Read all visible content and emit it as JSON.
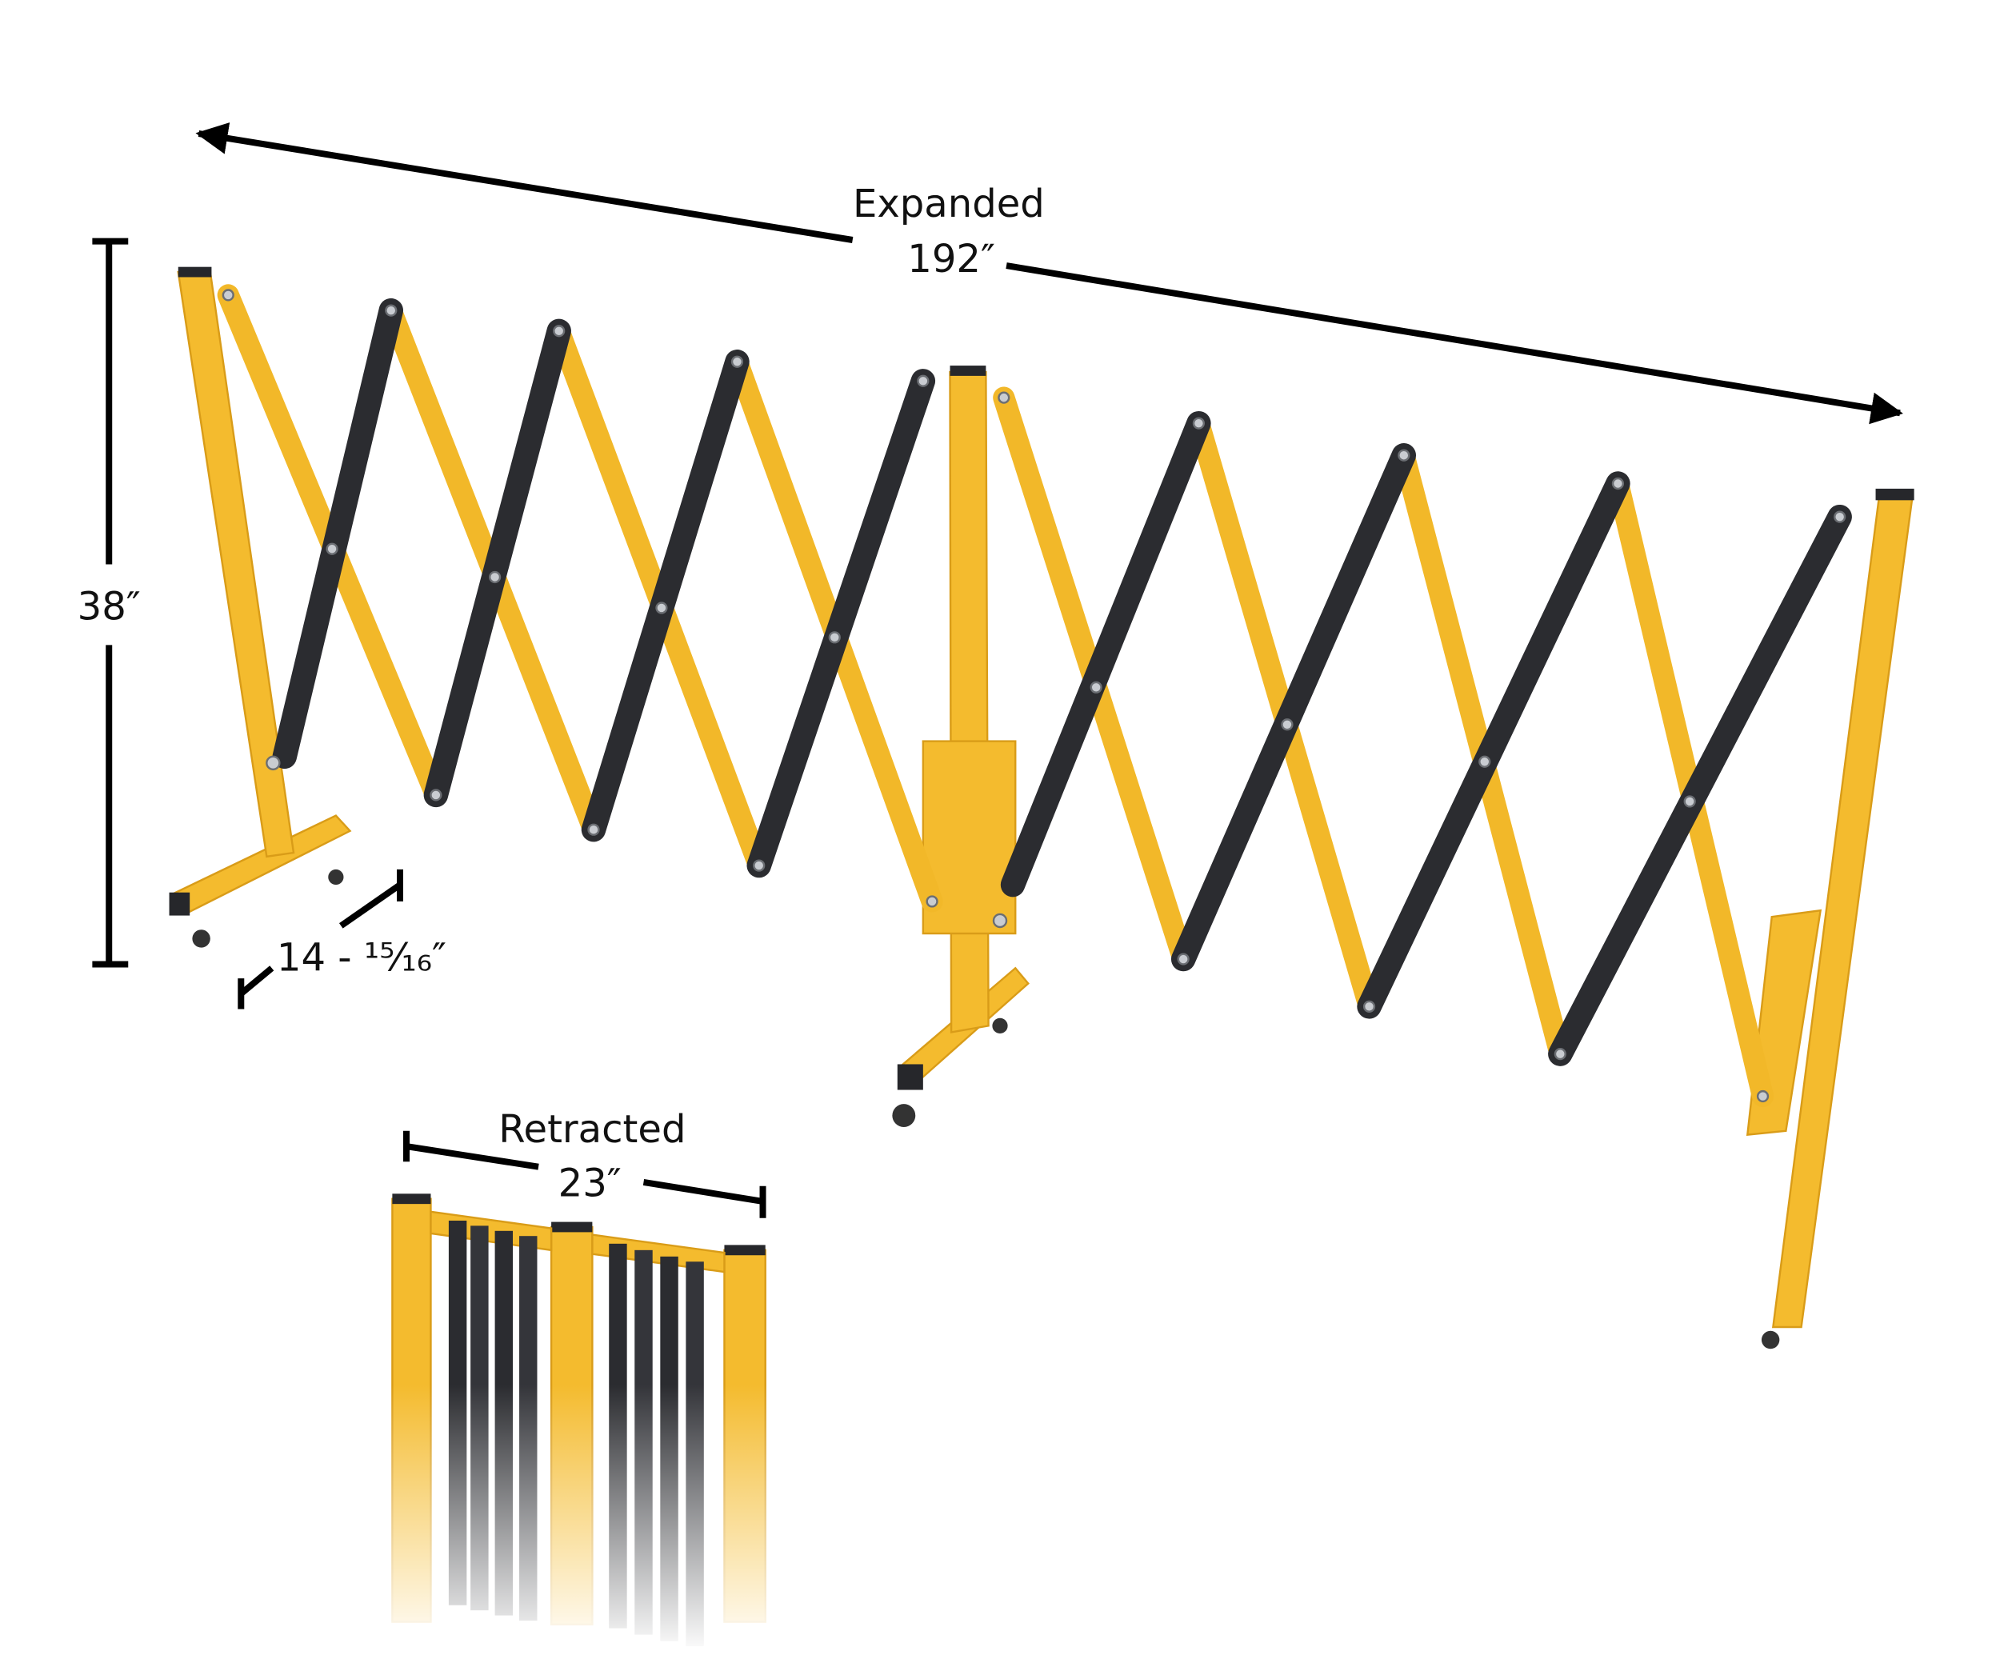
{
  "dimensions": {
    "expanded_label": "Expanded",
    "expanded_value": "192″",
    "height_value": "38″",
    "base_depth_value": "14 - ¹⁵⁄₁₆″",
    "retracted_label": "Retracted",
    "retracted_value": "23″"
  },
  "colors": {
    "frame_yellow": "#f4bb2e",
    "arm_black": "#2b2c30",
    "dimension_lines": "#000000"
  }
}
